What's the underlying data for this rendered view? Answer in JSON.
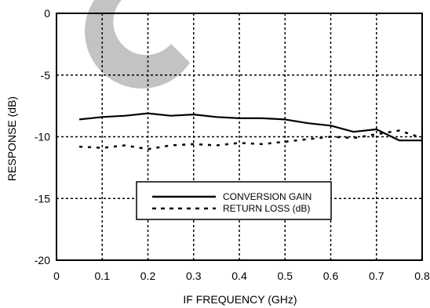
{
  "chart_data": {
    "type": "line",
    "xlabel": "IF FREQUENCY (GHz)",
    "ylabel": "RESPONSE (dB)",
    "xlim": [
      0,
      0.8
    ],
    "ylim": [
      -20,
      0
    ],
    "x_ticks": [
      0,
      0.1,
      0.2,
      0.3,
      0.4,
      0.5,
      0.6,
      0.7,
      0.8
    ],
    "x_tick_labels": [
      "0",
      "0.1",
      "0.2",
      "0.3",
      "0.4",
      "0.5",
      "0.6",
      "0.7",
      "0.8"
    ],
    "y_ticks": [
      0,
      -5,
      -10,
      -15,
      -20
    ],
    "y_tick_labels": [
      "0",
      "-5",
      "-10",
      "-15",
      "-20"
    ],
    "grid": true,
    "legend_position": "lower-center",
    "series": [
      {
        "name": "CONVERSION GAIN",
        "style": "solid",
        "x": [
          0.05,
          0.1,
          0.15,
          0.2,
          0.25,
          0.3,
          0.35,
          0.4,
          0.45,
          0.5,
          0.55,
          0.6,
          0.65,
          0.7,
          0.75,
          0.8
        ],
        "y": [
          -8.6,
          -8.4,
          -8.3,
          -8.1,
          -8.3,
          -8.2,
          -8.4,
          -8.5,
          -8.5,
          -8.6,
          -8.9,
          -9.1,
          -9.6,
          -9.4,
          -10.3,
          -10.3
        ]
      },
      {
        "name": "RETURN LOSS (dB)",
        "style": "dashed",
        "x": [
          0.05,
          0.1,
          0.15,
          0.2,
          0.25,
          0.3,
          0.35,
          0.4,
          0.45,
          0.5,
          0.55,
          0.6,
          0.65,
          0.7,
          0.75,
          0.8
        ],
        "y": [
          -10.8,
          -10.9,
          -10.7,
          -11.0,
          -10.7,
          -10.6,
          -10.7,
          -10.5,
          -10.6,
          -10.4,
          -10.2,
          -10.0,
          -10.1,
          -9.8,
          -9.5,
          -10.1
        ]
      }
    ]
  }
}
